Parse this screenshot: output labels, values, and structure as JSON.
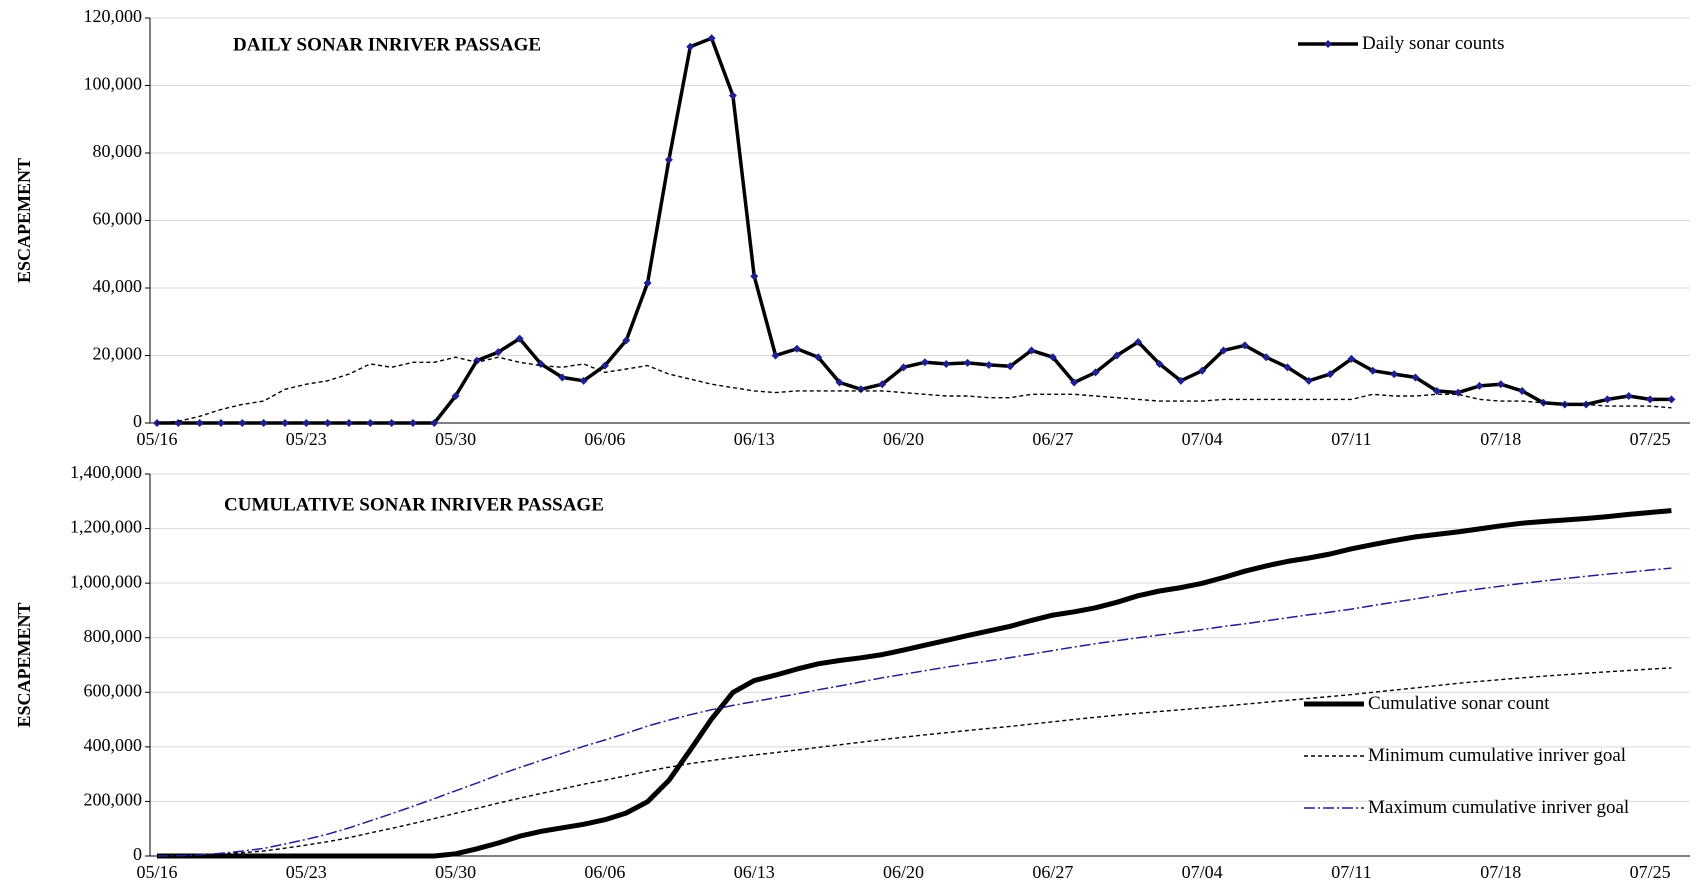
{
  "chart_data": [
    {
      "type": "line",
      "title": "DAILY SONAR INRIVER  PASSAGE",
      "ylabel": "ESCAPEMENT",
      "legend": "upper right",
      "grid": true,
      "categories": [
        "05/16",
        null,
        null,
        null,
        null,
        null,
        null,
        "05/23",
        null,
        null,
        null,
        null,
        null,
        null,
        "05/30",
        null,
        null,
        null,
        null,
        null,
        null,
        "06/06",
        null,
        null,
        null,
        null,
        null,
        null,
        "06/13",
        null,
        null,
        null,
        null,
        null,
        null,
        "06/20",
        null,
        null,
        null,
        null,
        null,
        null,
        "06/27",
        null,
        null,
        null,
        null,
        null,
        null,
        "07/04",
        null,
        null,
        null,
        null,
        null,
        null,
        "07/11",
        null,
        null,
        null,
        null,
        null,
        null,
        "07/18",
        null,
        null,
        null,
        null,
        null,
        null,
        "07/25",
        null
      ],
      "ylim": [
        0,
        120000
      ],
      "yticks": [
        0,
        {
          "value": 20000,
          "label": "20,000"
        },
        {
          "value": 40000,
          "label": "40,000"
        },
        {
          "value": 60000,
          "label": "60,000"
        },
        {
          "value": 80000,
          "label": "80,000"
        },
        {
          "value": 100000,
          "label": "100,000"
        },
        {
          "value": 120000,
          "label": "120,000"
        }
      ],
      "series": [
        {
          "name": "Daily sonar counts",
          "color": "#000000",
          "marker_color": "#1f1f8f",
          "line_style": "solid",
          "marker": "diamond",
          "values": [
            0,
            0,
            0,
            0,
            0,
            0,
            0,
            0,
            0,
            0,
            0,
            0,
            0,
            0,
            8000,
            18500,
            21000,
            25000,
            17500,
            13500,
            12500,
            17000,
            24500,
            41500,
            78000,
            111500,
            114000,
            97000,
            43500,
            20000,
            22000,
            19500,
            12000,
            10000,
            11500,
            16500,
            18000,
            17500,
            17800,
            17200,
            16800,
            21500,
            19500,
            12000,
            15000,
            20000,
            24000,
            17500,
            12500,
            15500,
            21500,
            23000,
            19500,
            16500,
            12500,
            14500,
            19000,
            15500,
            14500,
            13500,
            9500,
            9000,
            11000,
            11500,
            9500,
            6000,
            5500,
            5500,
            7000,
            8000,
            7000,
            7000
          ]
        },
        {
          "color": "#000000",
          "line_style": "dashed",
          "values": [
            0,
            500,
            2000,
            4000,
            5500,
            6500,
            10000,
            11500,
            12500,
            14500,
            17500,
            16500,
            18000,
            18000,
            19500,
            18000,
            19500,
            18000,
            17000,
            16500,
            17500,
            15000,
            16000,
            17000,
            14500,
            13000,
            11500,
            10500,
            9500,
            9000,
            9500,
            9500,
            9500,
            9500,
            9500,
            9000,
            8500,
            8000,
            8000,
            7500,
            7500,
            8500,
            8500,
            8500,
            8000,
            7500,
            7000,
            6500,
            6500,
            6500,
            7000,
            7000,
            7000,
            7000,
            7000,
            7000,
            7000,
            8500,
            8000,
            8000,
            8500,
            8500,
            7000,
            6500,
            6500,
            6000,
            5500,
            5500,
            5000,
            5000,
            5000,
            4500
          ]
        }
      ]
    },
    {
      "type": "line",
      "title": "CUMULATIVE  SONAR INRIVER  PASSAGE",
      "ylabel": "ESCAPEMENT",
      "legend": "lower right",
      "grid": true,
      "categories": [
        "05/16",
        null,
        null,
        null,
        null,
        null,
        null,
        "05/23",
        null,
        null,
        null,
        null,
        null,
        null,
        "05/30",
        null,
        null,
        null,
        null,
        null,
        null,
        "06/06",
        null,
        null,
        null,
        null,
        null,
        null,
        "06/13",
        null,
        null,
        null,
        null,
        null,
        null,
        "06/20",
        null,
        null,
        null,
        null,
        null,
        null,
        "06/27",
        null,
        null,
        null,
        null,
        null,
        null,
        "07/04",
        null,
        null,
        null,
        null,
        null,
        null,
        "07/11",
        null,
        null,
        null,
        null,
        null,
        null,
        "07/18",
        null,
        null,
        null,
        null,
        null,
        null,
        "07/25",
        null
      ],
      "ylim": [
        0,
        1400000
      ],
      "yticks": [
        0,
        {
          "value": 200000,
          "label": "200,000"
        },
        {
          "value": 400000,
          "label": "400,000"
        },
        {
          "value": 600000,
          "label": "600,000"
        },
        {
          "value": 800000,
          "label": "800,000"
        },
        {
          "value": 1000000,
          "label": "1,000,000"
        },
        {
          "value": 1200000,
          "label": "1,200,000"
        },
        {
          "value": 1400000,
          "label": "1,400,000"
        }
      ],
      "series": [
        {
          "name": "Cumulative sonar count",
          "color": "#000000",
          "line_style": "bold",
          "values": [
            0,
            0,
            0,
            0,
            0,
            0,
            0,
            0,
            0,
            0,
            0,
            0,
            0,
            0,
            8000,
            26500,
            47500,
            72500,
            90000,
            103500,
            116000,
            133000,
            157500,
            199000,
            277000,
            388500,
            502500,
            599500,
            643000,
            663000,
            685000,
            704500,
            716500,
            726500,
            738000,
            754500,
            772500,
            790000,
            807800,
            825000,
            841800,
            863300,
            882800,
            894800,
            909800,
            929800,
            953800,
            971300,
            983800,
            999300,
            1020800,
            1043800,
            1063300,
            1079800,
            1092300,
            1106800,
            1125800,
            1141300,
            1155800,
            1169300,
            1178800,
            1187800,
            1198800,
            1210300,
            1219800,
            1225800,
            1231300,
            1236800,
            1243800,
            1251800,
            1258800,
            1265800
          ]
        },
        {
          "name": "Minimum cumulative inriver goal",
          "color": "#000000",
          "line_style": "dashed",
          "values": [
            0,
            500,
            2500,
            6500,
            12000,
            18500,
            28500,
            40000,
            52500,
            67000,
            84500,
            101000,
            119000,
            137000,
            156500,
            174500,
            194000,
            212000,
            229000,
            245500,
            263000,
            278000,
            294000,
            311000,
            325500,
            338500,
            350000,
            360500,
            370000,
            379000,
            388500,
            398000,
            407500,
            417000,
            426500,
            435500,
            444000,
            452000,
            460000,
            467500,
            475000,
            483500,
            492000,
            500500,
            508500,
            516000,
            523000,
            529500,
            536000,
            542500,
            549500,
            556500,
            563500,
            570500,
            577500,
            584500,
            591500,
            600000,
            608000,
            616000,
            624500,
            633000,
            640000,
            646500,
            653000,
            659000,
            664500,
            670000,
            675000,
            680000,
            685000,
            689500
          ]
        },
        {
          "name": "Maximum cumulative inriver goal",
          "color": "#1f1f8f",
          "line_style": "dashdot",
          "values": [
            0,
            1000,
            4000,
            10000,
            18000,
            28000,
            44000,
            61000,
            80000,
            103000,
            129000,
            155000,
            182000,
            210000,
            239000,
            267000,
            297000,
            324000,
            350000,
            376000,
            402000,
            425000,
            450000,
            476000,
            498000,
            518000,
            536000,
            552000,
            566000,
            580000,
            594000,
            609000,
            623000,
            638000,
            653000,
            666000,
            679000,
            692000,
            704000,
            715000,
            727000,
            740000,
            753000,
            766000,
            778000,
            789000,
            800000,
            810000,
            820000,
            830000,
            841000,
            851000,
            862000,
            873000,
            884000,
            894000,
            905000,
            918000,
            930000,
            942000,
            955000,
            968000,
            979000,
            989000,
            999000,
            1008000,
            1017000,
            1025000,
            1033000,
            1040000,
            1048000,
            1055000
          ]
        }
      ]
    }
  ]
}
